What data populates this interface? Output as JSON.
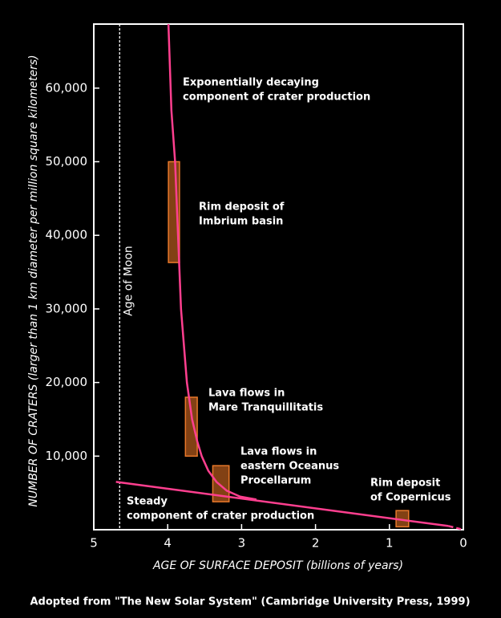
{
  "chart_data": {
    "type": "line",
    "xlabel": "AGE OF SURFACE DEPOSIT (billions of years)",
    "ylabel": "NUMBER OF CRATERS (larger than 1 km diameter per million square kilometers)",
    "xlim": [
      5,
      0
    ],
    "ylim": [
      0,
      68700
    ],
    "xticks": [
      5,
      4,
      3,
      2,
      1,
      0
    ],
    "yticks": [
      {
        "value": 10000,
        "label": "10,000"
      },
      {
        "value": 20000,
        "label": "20,000"
      },
      {
        "value": 30000,
        "label": "30,000"
      },
      {
        "value": 40000,
        "label": "40,000"
      },
      {
        "value": 50000,
        "label": "50,000"
      },
      {
        "value": 60000,
        "label": "60,000"
      }
    ],
    "series": [
      {
        "color": "#ff3f8f",
        "style": "solid",
        "x": [
          3.99,
          3.95,
          3.9,
          3.86,
          3.82,
          3.74,
          3.67,
          3.6,
          3.54,
          3.45,
          3.34,
          3.2,
          3.02,
          2.8
        ],
        "values": [
          68700,
          57000,
          50000,
          40000,
          30000,
          20000,
          15000,
          12000,
          10000,
          8000,
          6500,
          5300,
          4500,
          4100
        ]
      },
      {
        "color": "#ff3f8f",
        "style": "solid",
        "x": [
          4.7,
          0.2
        ],
        "values": [
          6500,
          500
        ]
      },
      {
        "color": "#ff3f8f",
        "style": "dashed",
        "x": [
          0.2,
          0
        ],
        "values": [
          500,
          0
        ]
      }
    ],
    "boxes": [
      {
        "x": [
          3.99,
          3.84
        ],
        "values": [
          50000,
          36300
        ]
      },
      {
        "x": [
          3.76,
          3.6
        ],
        "values": [
          18000,
          10000
        ]
      },
      {
        "x": [
          3.39,
          3.17
        ],
        "values": [
          8700,
          3800
        ]
      },
      {
        "x": [
          0.91,
          0.74
        ],
        "values": [
          2600,
          400
        ]
      }
    ],
    "box_color": "#c8641e",
    "moon_line": {
      "x": 4.65,
      "label": "Age of Moon"
    },
    "annotations": [
      {
        "lines": [
          "Exponentially decaying",
          "component of crater production"
        ]
      },
      {
        "lines": [
          "Rim deposit of",
          "Imbrium basin"
        ]
      },
      {
        "lines": [
          "Lava flows in",
          "Mare Tranquillitatis"
        ]
      },
      {
        "lines": [
          "Lava flows in",
          "eastern Oceanus",
          "Procellarum"
        ]
      },
      {
        "lines": [
          "Steady",
          "component of crater production"
        ]
      },
      {
        "lines": [
          "Rim deposit",
          "of Copernicus"
        ]
      }
    ],
    "caption": "Adopted from \"The New Solar System\" (Cambridge University Press,  1999)"
  }
}
